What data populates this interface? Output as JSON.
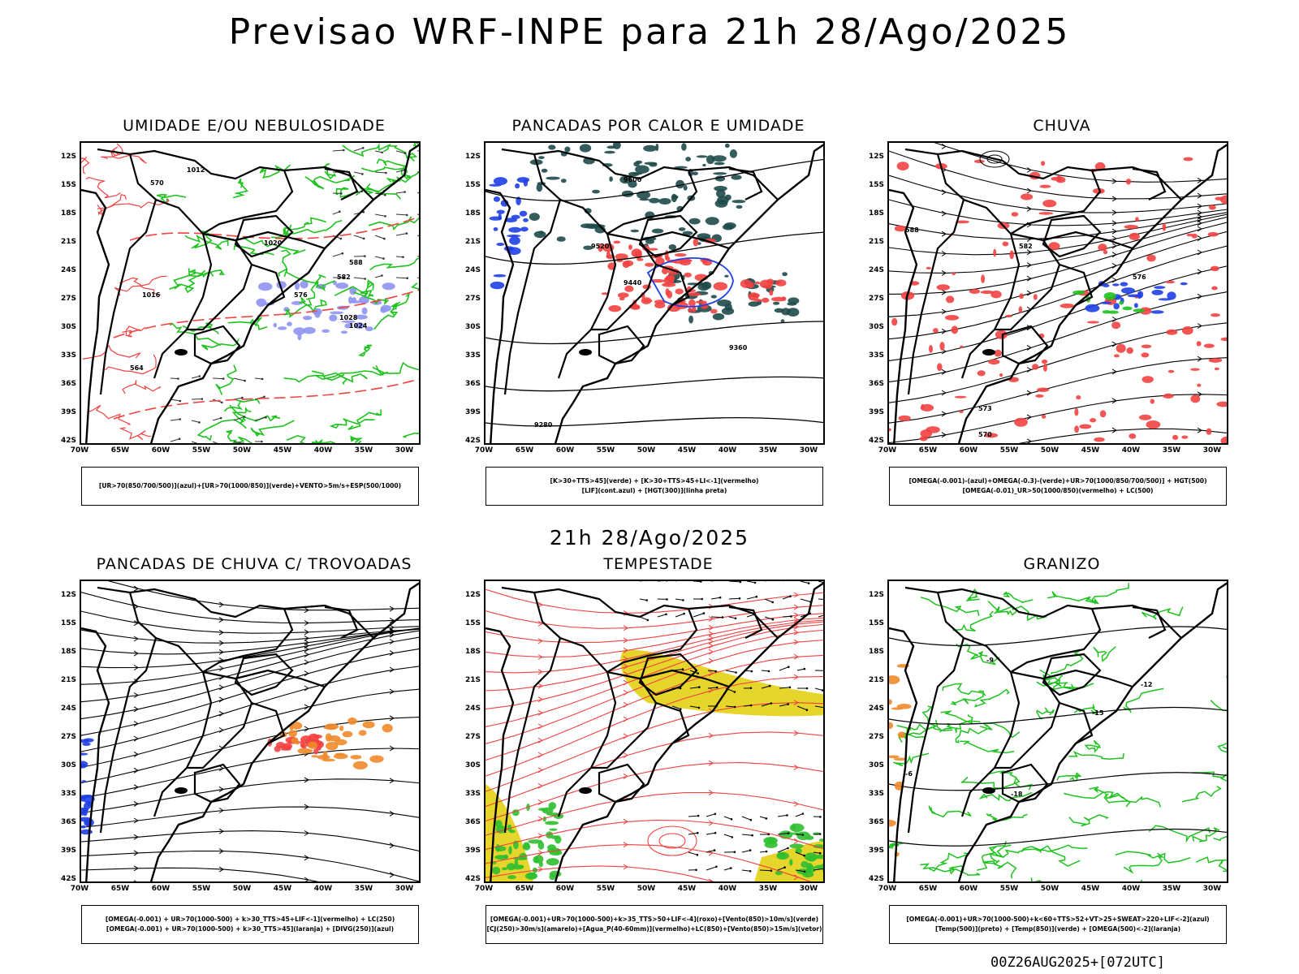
{
  "header": {
    "title": "Previsao WRF-INPE  para 21h 28/Ago/2025",
    "subtitle": "21h 28/Ago/2025",
    "footer": "00Z26AUG2025+[072UTC]"
  },
  "axes": {
    "lat_labels": [
      "12S",
      "15S",
      "18S",
      "21S",
      "24S",
      "27S",
      "30S",
      "33S",
      "36S",
      "39S",
      "42S"
    ],
    "lon_labels": [
      "70W",
      "65W",
      "60W",
      "55W",
      "50W",
      "45W",
      "40W",
      "35W",
      "30W"
    ]
  },
  "colors": {
    "humid_blue": "#8e93f2",
    "humid_green": "#1fc21f",
    "red": "#f24141",
    "dark_teal": "#1f4a4a",
    "orange": "#f08a2a",
    "yellow": "#e6d52a",
    "blue": "#1f3fe6"
  },
  "panels": [
    {
      "id": "umidade",
      "title": "UMIDADE E/OU NEBULOSIDADE",
      "legend": [
        "[UR>70(850/700/500)](azul)+[UR>70(1000/850)](verde)+VENTO>5m/s+ESP(500/1000)"
      ],
      "contour_labels": [
        "1012",
        "1020",
        "1024",
        "1016",
        "1028",
        "570",
        "582",
        "588",
        "576",
        "564"
      ]
    },
    {
      "id": "pancadas_calor",
      "title": "PANCADAS POR CALOR E UMIDADE",
      "legend": [
        "[K>30+TTS>45](verde) + [K>30+TTS>45+LI<-1](vermelho)",
        "[LIF](cont.azul) + [HGT(300)](linha preta)"
      ],
      "contour_labels": [
        "9600",
        "9520",
        "9440",
        "9360",
        "9280"
      ]
    },
    {
      "id": "chuva",
      "title": "CHUVA",
      "legend": [
        "[OMEGA(-0.001)-(azul)+OMEGA(-0.3)-(verde)+UR>70(1000/850/700/500)] + HGT(500)",
        "[OMEGA(-0.01)_UR>50(1000/850)(vermelho) + LC(500)"
      ],
      "contour_labels": [
        "588",
        "582",
        "576",
        "573",
        "570"
      ]
    },
    {
      "id": "trovoadas",
      "title": "PANCADAS DE CHUVA C/ TROVOADAS",
      "legend": [
        "[OMEGA(-0.001) + UR>70(1000-500) + k>30_TTS>45+LIF<-1](vermelho) + LC(250)",
        "[OMEGA(-0.001) + UR>70(1000-500) + k>30_TTS>45](laranja) + [DIVG(250)](azul)"
      ],
      "contour_labels": []
    },
    {
      "id": "tempestade",
      "title": "TEMPESTADE",
      "legend": [
        "[OMEGA(-0.001)+UR>70(1000-500)+k>35_TTS>50+LIF<-4](roxo)+[Vento(850)>10m/s](verde)",
        "[CJ(250)>30m/s](amarelo)+[Agua_P(40-60mm)](vermelho)+LC(850)+[Vento(850)>15m/s](vetor)"
      ],
      "contour_labels": []
    },
    {
      "id": "granizo",
      "title": "GRANIZO",
      "legend": [
        "[OMEGA(-0.001)+UR>70(1000-500)+k<60+TTS>52+VT>25+SWEAT>220+LIF<-2](azul)",
        "[Temp(500)](preto) + [Temp(850)](verde) + [OMEGA(500)<-2](laranja)"
      ],
      "contour_labels": [
        "-9",
        "-12",
        "-15",
        "-18",
        "-6"
      ]
    }
  ]
}
